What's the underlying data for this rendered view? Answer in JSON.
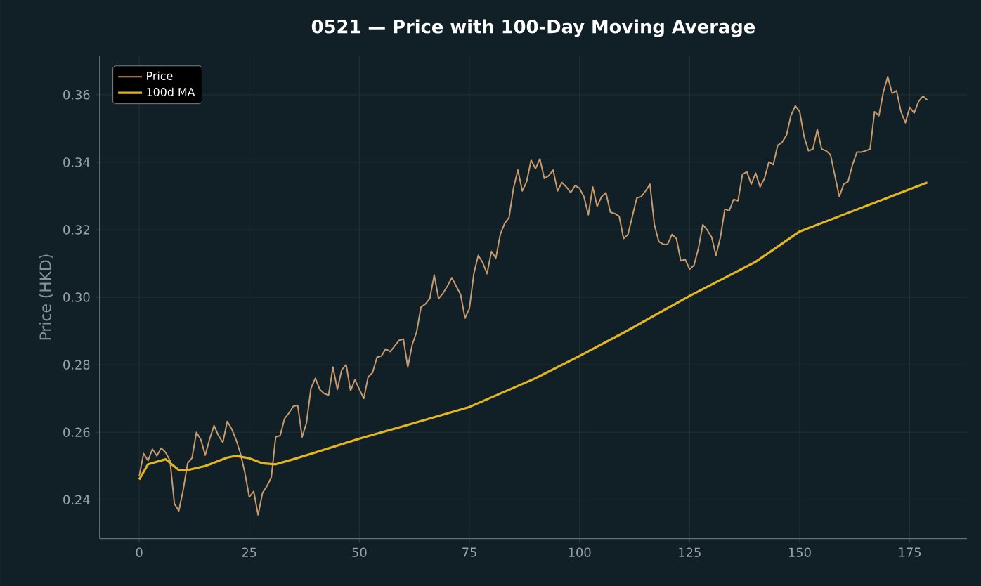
{
  "chart_data": {
    "type": "line",
    "title": "0521 — Price with 100-Day Moving Average",
    "ylabel": "Price (HKD)",
    "xlim": [
      -9,
      188
    ],
    "ylim": [
      0.2285,
      0.3715
    ],
    "xticks": [
      0,
      25,
      50,
      75,
      100,
      125,
      150,
      175
    ],
    "yticks": [
      0.24,
      0.26,
      0.28,
      {
        "value": 0.3,
        "label": "0.30"
      },
      0.32,
      0.34,
      0.36
    ],
    "grid": true,
    "legend": "top left",
    "series": [
      {
        "name": "Price",
        "color": "#c89a6c",
        "x": [
          0,
          1,
          2,
          3,
          4,
          5,
          6,
          7,
          8,
          9,
          10,
          11,
          12,
          13,
          14,
          15,
          16,
          17,
          18,
          19,
          20,
          21,
          22,
          23,
          24,
          25,
          26,
          27,
          28,
          29,
          30,
          31,
          32,
          33,
          34,
          35,
          36,
          37,
          38,
          39,
          40,
          41,
          42,
          43,
          44,
          45,
          46,
          47,
          48,
          49,
          50,
          51,
          52,
          53,
          54,
          55,
          56,
          57,
          58,
          59,
          60,
          61,
          62,
          63,
          64,
          65,
          66,
          67,
          68,
          69,
          70,
          71,
          72,
          73,
          74,
          75,
          76,
          77,
          78,
          79,
          80,
          81,
          82,
          83,
          84,
          85,
          86,
          87,
          88,
          89,
          90,
          91,
          92,
          93,
          94,
          95,
          96,
          97,
          98,
          99,
          100,
          101,
          102,
          103,
          104,
          105,
          106,
          107,
          108,
          109,
          110,
          111,
          112,
          113,
          114,
          115,
          116,
          117,
          118,
          119,
          120,
          121,
          122,
          123,
          124,
          125,
          126,
          127,
          128,
          129,
          130,
          131,
          132,
          133,
          134,
          135,
          136,
          137,
          138,
          139,
          140,
          141,
          142,
          143,
          144,
          145,
          146,
          147,
          148,
          149,
          150,
          151,
          152,
          153,
          154,
          155,
          156,
          157,
          158,
          159,
          160,
          161,
          162,
          163,
          164,
          165,
          166,
          167,
          168,
          169,
          170,
          171,
          172,
          173,
          174,
          175,
          176,
          177,
          178,
          179
        ],
        "values": [
          0.247,
          0.2537,
          0.2516,
          0.255,
          0.253,
          0.2553,
          0.254,
          0.2516,
          0.2388,
          0.2367,
          0.243,
          0.2508,
          0.2524,
          0.26,
          0.2578,
          0.2532,
          0.258,
          0.262,
          0.259,
          0.257,
          0.2632,
          0.261,
          0.2578,
          0.2537,
          0.248,
          0.2408,
          0.2425,
          0.2355,
          0.242,
          0.244,
          0.2466,
          0.2586,
          0.259,
          0.264,
          0.2657,
          0.2677,
          0.268,
          0.2586,
          0.2628,
          0.273,
          0.276,
          0.2727,
          0.2715,
          0.271,
          0.2793,
          0.2727,
          0.2785,
          0.28,
          0.2723,
          0.2756,
          0.2727,
          0.27,
          0.2764,
          0.2777,
          0.2822,
          0.2826,
          0.2847,
          0.2839,
          0.2855,
          0.2872,
          0.2876,
          0.2793,
          0.2859,
          0.2897,
          0.2971,
          0.298,
          0.2996,
          0.3066,
          0.2996,
          0.3012,
          0.3033,
          0.3058,
          0.3033,
          0.3008,
          0.2938,
          0.2967,
          0.307,
          0.3124,
          0.3103,
          0.307,
          0.3136,
          0.3116,
          0.3186,
          0.3219,
          0.3236,
          0.3323,
          0.3377,
          0.3315,
          0.3343,
          0.3406,
          0.3381,
          0.341,
          0.3352,
          0.336,
          0.3377,
          0.3315,
          0.334,
          0.3327,
          0.331,
          0.3331,
          0.3323,
          0.3298,
          0.3244,
          0.3327,
          0.3269,
          0.3298,
          0.331,
          0.3252,
          0.3248,
          0.324,
          0.3174,
          0.3186,
          0.324,
          0.3294,
          0.3298,
          0.3315,
          0.3335,
          0.3215,
          0.3165,
          0.3157,
          0.3157,
          0.3186,
          0.3174,
          0.3108,
          0.3112,
          0.3083,
          0.3095,
          0.3145,
          0.3215,
          0.3199,
          0.3178,
          0.3124,
          0.3178,
          0.3261,
          0.3256,
          0.329,
          0.3286,
          0.3364,
          0.3372,
          0.3335,
          0.3368,
          0.3327,
          0.3352,
          0.3401,
          0.3393,
          0.345,
          0.3459,
          0.348,
          0.3538,
          0.3567,
          0.355,
          0.3476,
          0.3434,
          0.3439,
          0.3497,
          0.3439,
          0.3434,
          0.3422,
          0.336,
          0.3298,
          0.3335,
          0.3343,
          0.3393,
          0.343,
          0.343,
          0.3434,
          0.3439,
          0.355,
          0.3538,
          0.3608,
          0.3654,
          0.3604,
          0.3612,
          0.355,
          0.3517,
          0.3563,
          0.3546,
          0.358,
          0.3596,
          0.3584
        ]
      },
      {
        "name": "100d MA",
        "color": "#e3b520",
        "x": [
          0,
          2,
          6,
          9,
          11,
          15,
          20,
          22,
          25,
          28,
          31,
          35,
          40,
          50,
          60,
          75,
          90,
          100,
          110,
          125,
          140,
          150,
          160,
          175,
          179
        ],
        "values": [
          0.246,
          0.2505,
          0.252,
          0.2488,
          0.2488,
          0.25,
          0.2525,
          0.253,
          0.2523,
          0.2508,
          0.2505,
          0.252,
          0.254,
          0.2581,
          0.2618,
          0.2675,
          0.276,
          0.2826,
          0.2895,
          0.3004,
          0.3105,
          0.3195,
          0.3245,
          0.332,
          0.334
        ]
      }
    ]
  }
}
